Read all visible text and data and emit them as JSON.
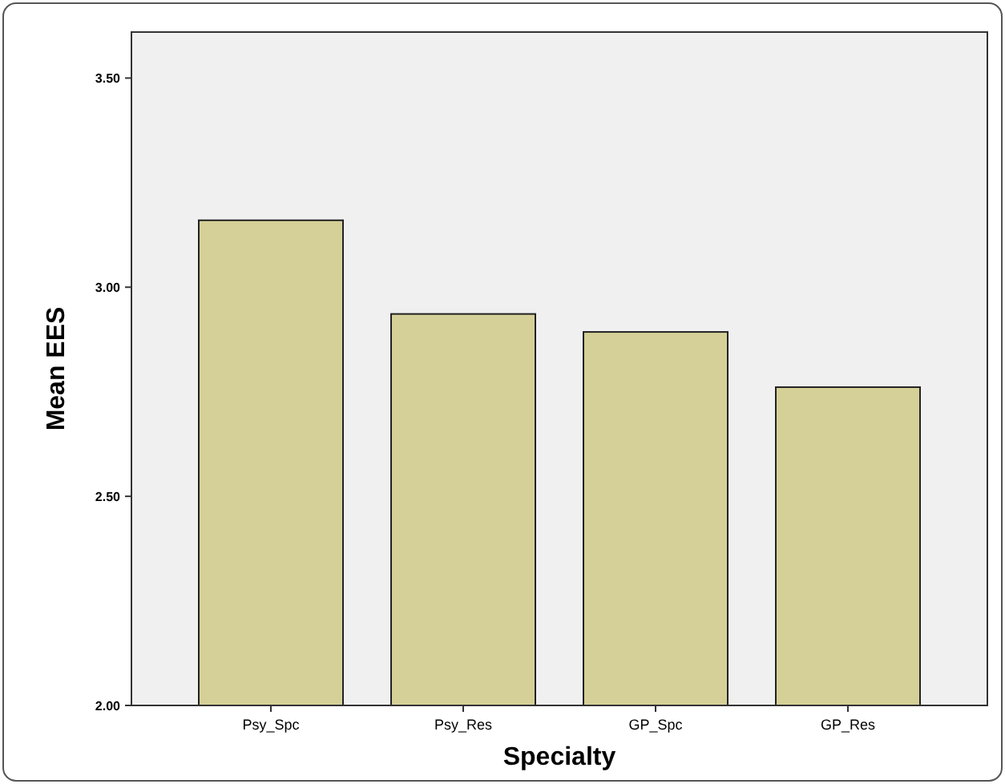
{
  "chart_data": {
    "type": "bar",
    "xlabel": "Specialty",
    "ylabel": "Mean EES",
    "categories": [
      "Psy_Spc",
      "Psy_Res",
      "GP_Spc",
      "GP_Res"
    ],
    "values": [
      3.16,
      2.936,
      2.893,
      2.761
    ],
    "color": "#d5d097",
    "ylim": [
      2,
      3.61
    ],
    "yticks": [
      {
        "value": 2,
        "label": "2.00"
      },
      {
        "value": 2.5,
        "label": "2.50"
      },
      {
        "value": 3,
        "label": "3.00"
      },
      {
        "value": 3.5,
        "label": "3.50"
      }
    ],
    "grid": false
  }
}
